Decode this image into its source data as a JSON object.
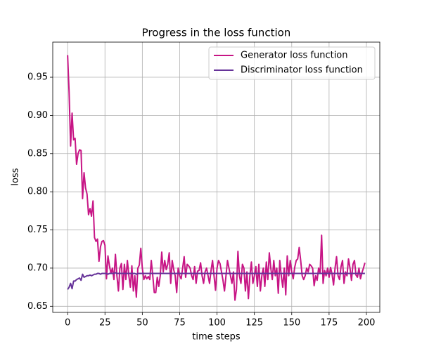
{
  "chart_data": {
    "type": "line",
    "title": "Progress in the loss function",
    "xlabel": "time steps",
    "ylabel": "loss",
    "x": [
      0,
      1,
      2,
      3,
      4,
      5,
      6,
      7,
      8,
      9,
      10,
      11,
      12,
      13,
      14,
      15,
      16,
      17,
      18,
      19,
      20,
      21,
      22,
      23,
      24,
      25,
      26,
      27,
      28,
      29,
      30,
      31,
      32,
      33,
      34,
      35,
      36,
      37,
      38,
      39,
      40,
      41,
      42,
      43,
      44,
      45,
      46,
      47,
      48,
      49,
      50,
      51,
      52,
      53,
      54,
      55,
      56,
      57,
      58,
      59,
      60,
      61,
      62,
      63,
      64,
      65,
      66,
      67,
      68,
      69,
      70,
      71,
      72,
      73,
      74,
      75,
      76,
      77,
      78,
      79,
      80,
      81,
      82,
      83,
      84,
      85,
      86,
      87,
      88,
      89,
      90,
      91,
      92,
      93,
      94,
      95,
      96,
      97,
      98,
      99,
      100,
      101,
      102,
      103,
      104,
      105,
      106,
      107,
      108,
      109,
      110,
      111,
      112,
      113,
      114,
      115,
      116,
      117,
      118,
      119,
      120,
      121,
      122,
      123,
      124,
      125,
      126,
      127,
      128,
      129,
      130,
      131,
      132,
      133,
      134,
      135,
      136,
      137,
      138,
      139,
      140,
      141,
      142,
      143,
      144,
      145,
      146,
      147,
      148,
      149,
      150,
      151,
      152,
      153,
      154,
      155,
      156,
      157,
      158,
      159,
      160,
      161,
      162,
      163,
      164,
      165,
      166,
      167,
      168,
      169,
      170,
      171,
      172,
      173,
      174,
      175,
      176,
      177,
      178,
      179,
      180,
      181,
      182,
      183,
      184,
      185,
      186,
      187,
      188,
      189,
      190,
      191,
      192,
      193,
      194,
      195,
      196,
      197,
      198,
      199
    ],
    "series": [
      {
        "name": "Generator loss function",
        "color": "#c71585",
        "values": [
          0.979,
          0.93,
          0.86,
          0.903,
          0.868,
          0.87,
          0.836,
          0.85,
          0.855,
          0.854,
          0.791,
          0.825,
          0.805,
          0.797,
          0.77,
          0.778,
          0.768,
          0.788,
          0.74,
          0.735,
          0.738,
          0.709,
          0.728,
          0.735,
          0.736,
          0.73,
          0.686,
          0.716,
          0.703,
          0.693,
          0.7,
          0.685,
          0.718,
          0.69,
          0.67,
          0.7,
          0.706,
          0.672,
          0.705,
          0.685,
          0.71,
          0.69,
          0.675,
          0.703,
          0.67,
          0.69,
          0.662,
          0.7,
          0.704,
          0.726,
          0.7,
          0.685,
          0.69,
          0.686,
          0.689,
          0.685,
          0.71,
          0.69,
          0.668,
          0.668,
          0.688,
          0.676,
          0.69,
          0.721,
          0.695,
          0.71,
          0.698,
          0.705,
          0.72,
          0.68,
          0.71,
          0.698,
          0.69,
          0.668,
          0.7,
          0.69,
          0.686,
          0.7,
          0.715,
          0.688,
          0.705,
          0.703,
          0.7,
          0.69,
          0.685,
          0.702,
          0.68,
          0.696,
          0.697,
          0.707,
          0.69,
          0.68,
          0.695,
          0.7,
          0.69,
          0.68,
          0.697,
          0.71,
          0.69,
          0.671,
          0.7,
          0.71,
          0.706,
          0.695,
          0.684,
          0.67,
          0.69,
          0.71,
          0.7,
          0.69,
          0.68,
          0.695,
          0.658,
          0.672,
          0.722,
          0.69,
          0.68,
          0.705,
          0.7,
          0.67,
          0.695,
          0.66,
          0.69,
          0.708,
          0.68,
          0.69,
          0.702,
          0.676,
          0.705,
          0.67,
          0.69,
          0.7,
          0.676,
          0.708,
          0.685,
          0.72,
          0.7,
          0.685,
          0.71,
          0.69,
          0.7,
          0.667,
          0.71,
          0.69,
          0.675,
          0.7,
          0.665,
          0.716,
          0.69,
          0.71,
          0.695,
          0.686,
          0.701,
          0.71,
          0.712,
          0.727,
          0.71,
          0.69,
          0.685,
          0.69,
          0.7,
          0.695,
          0.705,
          0.703,
          0.7,
          0.677,
          0.69,
          0.684,
          0.7,
          0.693,
          0.743,
          0.68,
          0.697,
          0.69,
          0.7,
          0.688,
          0.701,
          0.692,
          0.678,
          0.7,
          0.715,
          0.69,
          0.685,
          0.702,
          0.71,
          0.68,
          0.695,
          0.69,
          0.712,
          0.7,
          0.684,
          0.705,
          0.71,
          0.691,
          0.688,
          0.7,
          0.686,
          0.694,
          0.7,
          0.707
        ]
      },
      {
        "name": "Discriminator loss function",
        "color": "#663399",
        "values": [
          0.672,
          0.675,
          0.68,
          0.673,
          0.683,
          0.683,
          0.685,
          0.686,
          0.687,
          0.684,
          0.692,
          0.688,
          0.689,
          0.69,
          0.69,
          0.691,
          0.69,
          0.691,
          0.692,
          0.692,
          0.693,
          0.693,
          0.692,
          0.693,
          0.693,
          0.693,
          0.693,
          0.692,
          0.693,
          0.693,
          0.693,
          0.693,
          0.694,
          0.693,
          0.693,
          0.693,
          0.693,
          0.693,
          0.693,
          0.693,
          0.693,
          0.693,
          0.693,
          0.693,
          0.693,
          0.693,
          0.692,
          0.693,
          0.693,
          0.693,
          0.693,
          0.693,
          0.693,
          0.693,
          0.693,
          0.693,
          0.693,
          0.693,
          0.693,
          0.693,
          0.693,
          0.693,
          0.693,
          0.693,
          0.693,
          0.693,
          0.693,
          0.693,
          0.693,
          0.693,
          0.693,
          0.693,
          0.693,
          0.693,
          0.693,
          0.693,
          0.693,
          0.693,
          0.693,
          0.693,
          0.693,
          0.693,
          0.693,
          0.693,
          0.693,
          0.693,
          0.693,
          0.693,
          0.693,
          0.693,
          0.693,
          0.693,
          0.693,
          0.693,
          0.693,
          0.693,
          0.693,
          0.693,
          0.693,
          0.693,
          0.693,
          0.693,
          0.693,
          0.693,
          0.693,
          0.693,
          0.693,
          0.693,
          0.693,
          0.693,
          0.693,
          0.693,
          0.693,
          0.693,
          0.693,
          0.693,
          0.693,
          0.693,
          0.693,
          0.693,
          0.693,
          0.693,
          0.693,
          0.693,
          0.693,
          0.693,
          0.693,
          0.693,
          0.693,
          0.693,
          0.693,
          0.693,
          0.693,
          0.693,
          0.693,
          0.693,
          0.693,
          0.693,
          0.693,
          0.693,
          0.693,
          0.693,
          0.693,
          0.693,
          0.693,
          0.693,
          0.693,
          0.693,
          0.693,
          0.693,
          0.693,
          0.693,
          0.693,
          0.693,
          0.693,
          0.693,
          0.693,
          0.693,
          0.693,
          0.693,
          0.693,
          0.693,
          0.693,
          0.693,
          0.693,
          0.693,
          0.693,
          0.693,
          0.693,
          0.693,
          0.693,
          0.693,
          0.693,
          0.693,
          0.693,
          0.693,
          0.693,
          0.693,
          0.693,
          0.693,
          0.693,
          0.693,
          0.693,
          0.693,
          0.693,
          0.693,
          0.693,
          0.693,
          0.693,
          0.693,
          0.693,
          0.693,
          0.693,
          0.693,
          0.693,
          0.693,
          0.693,
          0.693,
          0.693,
          0.693
        ]
      }
    ],
    "xlim": [
      -9.95,
      208.95
    ],
    "xticks": [
      0,
      25,
      50,
      75,
      100,
      125,
      150,
      175,
      200
    ],
    "ylim": [
      0.642,
      0.996
    ],
    "yticks": [
      0.65,
      {
        "value": 0.7,
        "label": "0.70"
      },
      0.75,
      {
        "value": 0.8,
        "label": "0.80"
      },
      0.85,
      {
        "value": 0.9,
        "label": "0.90"
      },
      0.95
    ],
    "grid": true,
    "legend": "upper right"
  }
}
